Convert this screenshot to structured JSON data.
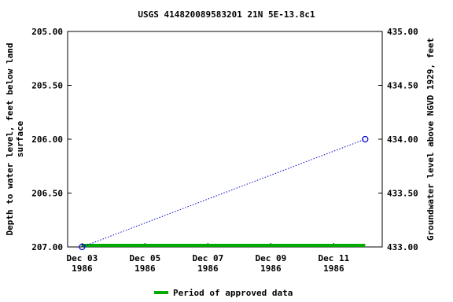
{
  "chart_data": {
    "type": "line",
    "title": "USGS 414820089583201 21N 5E-13.8c1",
    "y_label": [
      "Depth to water level, feet below land",
      "surface"
    ],
    "y2_label": "Groundwater level above NGVD 1929, feet",
    "x": [
      "1986-12-03",
      "1986-12-12"
    ],
    "series": [
      {
        "name": "Depth to water level",
        "color": "#0000cc",
        "values": [
          207.0,
          206.0
        ]
      }
    ],
    "xlim": [
      "1986-12-02T13:00",
      "1986-12-12T13:00"
    ],
    "xticks": [
      {
        "value": "1986-12-03",
        "label": "Dec 03\n1986"
      },
      {
        "value": "1986-12-05",
        "label": "Dec 05\n1986"
      },
      {
        "value": "1986-12-07",
        "label": "Dec 07\n1986"
      },
      {
        "value": "1986-12-09",
        "label": "Dec 09\n1986"
      },
      {
        "value": "1986-12-11",
        "label": "Dec 11\n1986"
      }
    ],
    "ylim": [
      205,
      207
    ],
    "y_inverted": true,
    "yticks": [
      {
        "value": 205,
        "label": "205.00"
      },
      {
        "value": 205.5,
        "label": "205.50"
      },
      {
        "value": 206,
        "label": "206.00"
      },
      {
        "value": 206.5,
        "label": "206.50"
      },
      {
        "value": 207,
        "label": "207.00"
      }
    ],
    "y2lim": [
      433,
      435
    ],
    "y2ticks": [
      {
        "value": 435,
        "label": "435.00"
      },
      {
        "value": 434.5,
        "label": "434.50"
      },
      {
        "value": 434,
        "label": "434.00"
      },
      {
        "value": 433.5,
        "label": "433.50"
      },
      {
        "value": 433,
        "label": "433.00"
      }
    ],
    "approved_period": {
      "name": "Period of approved data",
      "color": "#00aa00",
      "x": [
        "1986-12-03",
        "1986-12-12"
      ]
    },
    "grid": false
  }
}
